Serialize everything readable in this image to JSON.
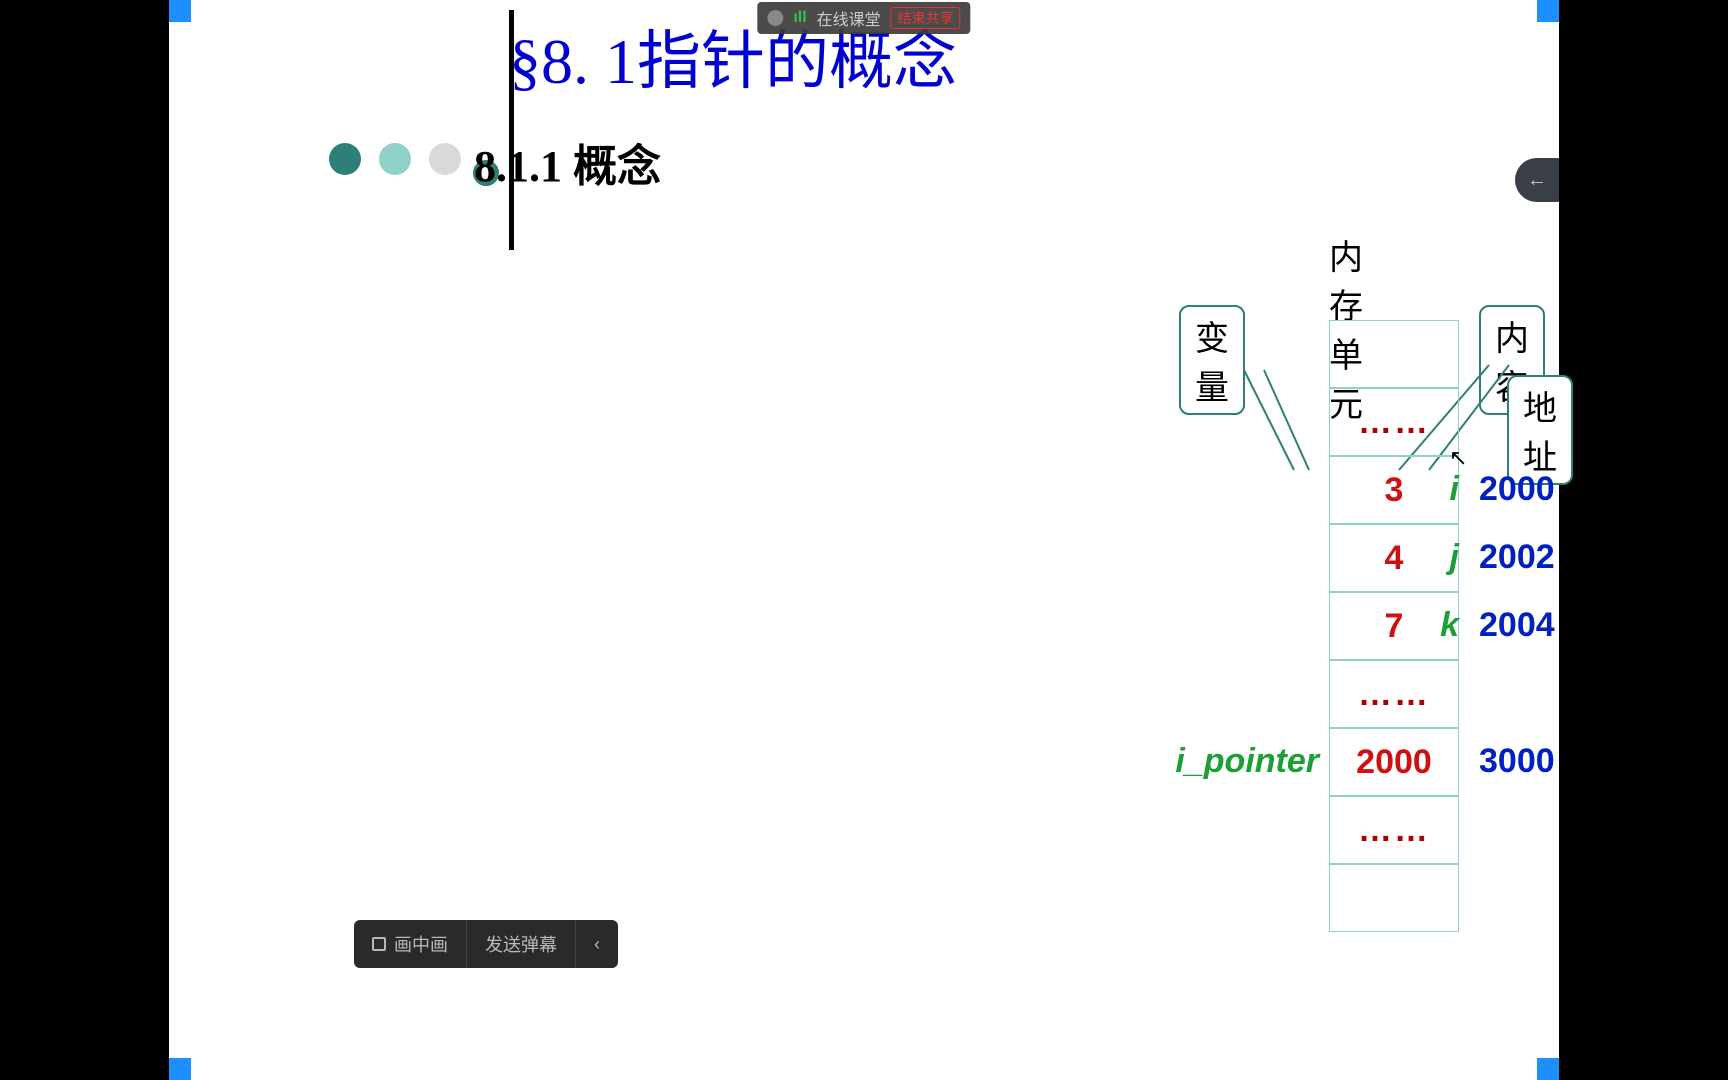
{
  "topbar": {
    "label": "在线课堂",
    "end_share": "结束共享"
  },
  "right_tab_glyph": "←",
  "bottombar": {
    "pip": "画中画",
    "danmu": "发送弹幕",
    "chevron": "‹"
  },
  "slide": {
    "title": "§8. 1指针的概念",
    "title_color": "#0000d0",
    "title_fontsize": 64,
    "subtitle": "8.1.1 概念",
    "subtitle_fontsize": 44
  },
  "diagram": {
    "header": "内存单元",
    "header_fontsize": 34,
    "label_variable": "变量",
    "label_content": "内容",
    "label_address": "地址",
    "label_fontsize": 34,
    "var_color": "#1aa034",
    "val_color": "#d01010",
    "addr_color": "#0020c0",
    "cell_border": "#8fd1c9",
    "rows": [
      {
        "var": "",
        "val": "",
        "addr": ""
      },
      {
        "var": "",
        "val": "……",
        "addr": ""
      },
      {
        "var": "i",
        "val": "3",
        "addr": "2000"
      },
      {
        "var": "j",
        "val": "4",
        "addr": "2002"
      },
      {
        "var": "k",
        "val": "7",
        "addr": "2004"
      },
      {
        "var": "",
        "val": "……",
        "addr": ""
      },
      {
        "var": "i_pointer",
        "val": "2000",
        "addr": "3000"
      },
      {
        "var": "",
        "val": "……",
        "addr": ""
      },
      {
        "var": "",
        "val": "",
        "addr": ""
      }
    ],
    "var_fontsize": 34,
    "val_fontsize": 34,
    "addr_fontsize": 34
  }
}
